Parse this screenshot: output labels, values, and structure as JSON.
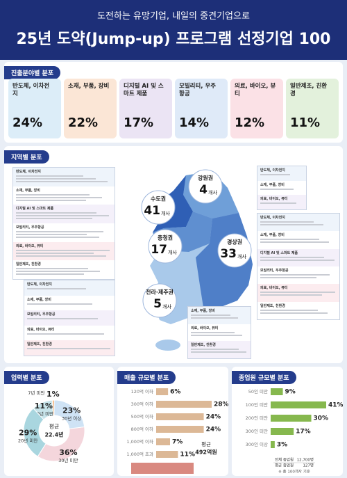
{
  "header": {
    "subtitle": "도전하는 유망기업, 내일의 중견기업으로",
    "title": "25년 도약(Jump-up) 프로그램 선정기업 100"
  },
  "sectors": {
    "title": "진출분야별 분포",
    "items": [
      {
        "name": "반도체, 이차전지",
        "share": "24%",
        "color": "#dcedf8"
      },
      {
        "name": "소재, 부품, 장비",
        "share": "22%",
        "color": "#fbe6d6"
      },
      {
        "name": "디지털 AI 및 스마트 제품",
        "share": "17%",
        "color": "#ebe4f4"
      },
      {
        "name": "모빌리티, 우주항공",
        "share": "14%",
        "color": "#dfeaf8"
      },
      {
        "name": "의료, 바이오, 뷰티",
        "share": "12%",
        "color": "#fbe1e6"
      },
      {
        "name": "일반제조, 친환경",
        "share": "11%",
        "color": "#e3f1dc"
      }
    ]
  },
  "regions": {
    "title": "지역별 분포",
    "items": [
      {
        "name": "수도권",
        "count": "41",
        "unit": "개사",
        "headings": [
          "반도체, 이차전지",
          "소재, 부품, 장비",
          "디지털 AI 및 스마트 제품",
          "모빌리티, 우주항공",
          "의료, 바이오, 뷰티",
          "일반제조, 친환경"
        ]
      },
      {
        "name": "강원권",
        "count": "4",
        "unit": "개사",
        "headings": [
          "반도체, 이차전지",
          "소재, 부품, 장비",
          "의료, 바이오, 뷰티"
        ]
      },
      {
        "name": "충청권",
        "count": "17",
        "unit": "개사",
        "headings": [
          "반도체, 이차전지",
          "소재, 부품, 장비",
          "모빌리티, 우주항공",
          "의료, 바이오, 뷰티",
          "일반제조, 친환경"
        ]
      },
      {
        "name": "경상권",
        "count": "33",
        "unit": "개사",
        "headings": [
          "반도체, 이차전지",
          "소재, 부품, 장비",
          "디지털 AI 및 스마트 제품",
          "모빌리티, 우주항공",
          "의료, 바이오, 뷰티",
          "일반제조, 친환경"
        ]
      },
      {
        "name": "전라·제주권",
        "count": "5",
        "unit": "개사",
        "headings": [
          "소재, 부품, 장비",
          "의료, 바이오, 뷰티",
          "일반제조, 친환경"
        ]
      }
    ]
  },
  "chart_data": [
    {
      "type": "pie",
      "title": "업력별 분포",
      "categories": [
        "7년 미만",
        "10년 미만",
        "20년 미만",
        "30년 미만",
        "30년 이상"
      ],
      "values": [
        1,
        11,
        29,
        36,
        23
      ],
      "value_labels": [
        "1%",
        "11%",
        "29%",
        "36%",
        "23%"
      ],
      "colors": [
        "#f0a868",
        "#c7e4ea",
        "#a9d6df",
        "#f4d6dc",
        "#cfe3f5"
      ],
      "center_label": "평균",
      "center_value": "22.4년"
    },
    {
      "type": "bar",
      "title": "매출 규모별 분포",
      "categories": [
        "120억 이하",
        "300억 이하",
        "500억 이하",
        "800억 이하",
        "1,000억 이하",
        "1,000억 초과"
      ],
      "values": [
        6,
        28,
        24,
        24,
        7,
        11
      ],
      "value_labels": [
        "6%",
        "28%",
        "24%",
        "24%",
        "7%",
        "11%"
      ],
      "color": "#dcb896",
      "annotation": [
        "평균",
        "492억원"
      ]
    },
    {
      "type": "bar",
      "title": "종업원 규모별 분포",
      "categories": [
        "50인 미만",
        "100인 미만",
        "200인 미만",
        "300인 미만",
        "300인 이상"
      ],
      "values": [
        9,
        41,
        30,
        17,
        3
      ],
      "value_labels": [
        "9%",
        "41%",
        "30%",
        "17%",
        "3%"
      ],
      "color": "#86b84e",
      "table": [
        [
          "전체 종업원",
          "12,700명"
        ],
        [
          "평균 종업원",
          "127명"
        ]
      ],
      "note": "※ 총 100개사 기준"
    }
  ]
}
